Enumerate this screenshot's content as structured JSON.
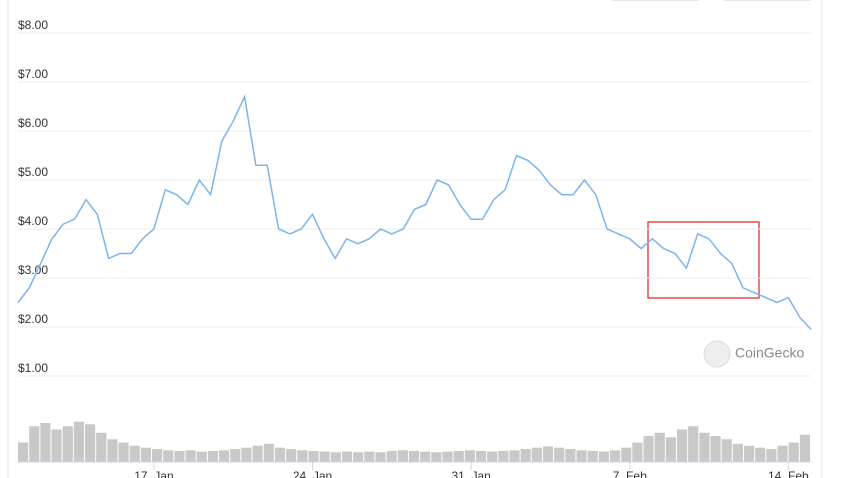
{
  "chart_data": [
    {
      "type": "line",
      "color": "#7cb5ec",
      "grid": true,
      "watermark": "CoinGecko",
      "categories": [
        null,
        null,
        null,
        null,
        null,
        null,
        null,
        null,
        null,
        null,
        null,
        null,
        "17. Jan",
        null,
        null,
        null,
        null,
        null,
        null,
        null,
        null,
        null,
        null,
        null,
        null,
        null,
        "24. Jan",
        null,
        null,
        null,
        null,
        null,
        null,
        null,
        null,
        null,
        null,
        null,
        null,
        null,
        "31. Jan",
        null,
        null,
        null,
        null,
        null,
        null,
        null,
        null,
        null,
        null,
        null,
        null,
        null,
        "7. Feb",
        null,
        null,
        null,
        null,
        null,
        null,
        null,
        null,
        null,
        null,
        null,
        null,
        null,
        "14. Feb",
        null,
        null
      ],
      "values": [
        2.5,
        2.8,
        3.3,
        3.8,
        4.1,
        4.2,
        4.6,
        4.3,
        3.4,
        3.5,
        3.5,
        3.8,
        4.0,
        4.8,
        4.7,
        4.5,
        5.0,
        4.7,
        5.8,
        6.2,
        6.7,
        5.3,
        5.3,
        4.0,
        3.9,
        4.0,
        4.3,
        3.8,
        3.4,
        3.8,
        3.7,
        3.8,
        4.0,
        3.9,
        4.0,
        4.4,
        4.5,
        5.0,
        4.9,
        4.5,
        4.2,
        4.2,
        4.6,
        4.8,
        5.5,
        5.4,
        5.2,
        4.9,
        4.7,
        4.7,
        5.0,
        4.7,
        4.0,
        3.9,
        3.8,
        3.6,
        3.8,
        3.6,
        3.5,
        3.2,
        3.9,
        3.8,
        3.5,
        3.3,
        2.8,
        2.7,
        2.6,
        2.5,
        2.6,
        2.2,
        1.95
      ],
      "ylim": [
        1,
        8
      ],
      "yticks": [
        {
          "value": 1,
          "label": "$1.00"
        },
        {
          "value": 2,
          "label": "$2.00"
        },
        {
          "value": 3,
          "label": "$3.00"
        },
        {
          "value": 4,
          "label": "$4.00"
        },
        {
          "value": 5,
          "label": "$5.00"
        },
        {
          "value": 6,
          "label": "$6.00"
        },
        {
          "value": 7,
          "label": "$7.00"
        },
        {
          "value": 8,
          "label": "$8.00"
        }
      ]
    },
    {
      "type": "bar",
      "color": "#c8c8c8",
      "ylim": [
        0,
        100
      ],
      "values": [
        30,
        55,
        60,
        50,
        55,
        62,
        58,
        45,
        35,
        30,
        25,
        22,
        20,
        18,
        17,
        18,
        16,
        17,
        18,
        20,
        22,
        25,
        28,
        22,
        20,
        18,
        17,
        16,
        15,
        16,
        15,
        16,
        15,
        17,
        18,
        17,
        16,
        15,
        16,
        17,
        18,
        17,
        16,
        17,
        18,
        20,
        22,
        24,
        22,
        20,
        18,
        17,
        16,
        18,
        22,
        30,
        40,
        45,
        38,
        50,
        55,
        45,
        40,
        35,
        28,
        25,
        22,
        20,
        25,
        30,
        42
      ]
    }
  ]
}
